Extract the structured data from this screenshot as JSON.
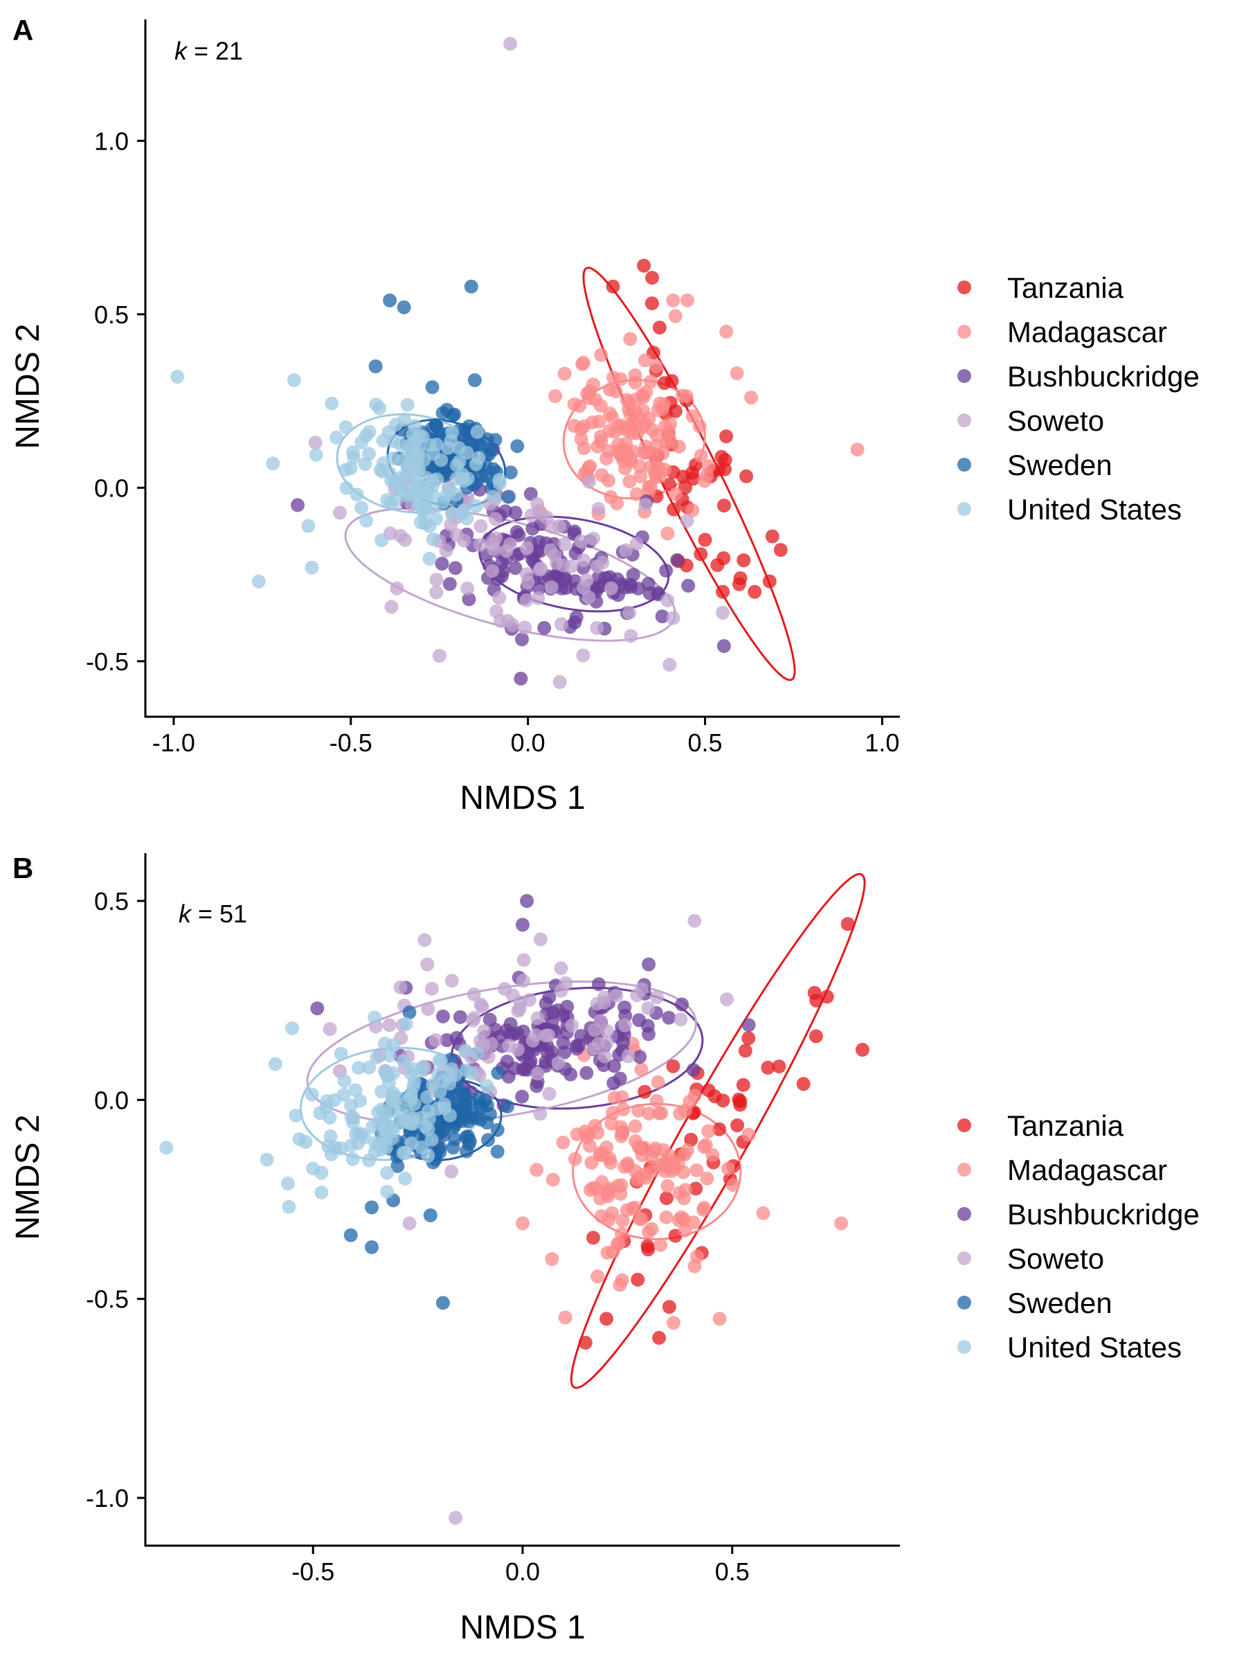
{
  "colors": {
    "Tanzania": "#E31A1C",
    "Madagascar": "#FB8A8A",
    "Bushbuckridge": "#6A3D9A",
    "Soweto": "#C2A5CF",
    "Sweden": "#1F65A8",
    "United States": "#9ECAE1"
  },
  "chart_data": [
    {
      "type": "scatter",
      "panel": "A",
      "annotation": {
        "variable": "k",
        "text": " = 21"
      },
      "xlabel": "NMDS 1",
      "ylabel": "NMDS 2",
      "xlim": [
        -1.08,
        1.05
      ],
      "ylim": [
        -0.66,
        1.35
      ],
      "xticks": [
        -1.0,
        -0.5,
        0.0,
        0.5,
        1.0
      ],
      "xtick_labels": [
        "-1.0",
        "-0.5",
        "0.0",
        "0.5",
        "1.0"
      ],
      "yticks": [
        -0.5,
        0.0,
        0.5,
        1.0
      ],
      "ytick_labels": [
        "-0.5",
        "0.0",
        "0.5",
        "1.0"
      ],
      "legend_position": "right",
      "series": [
        {
          "name": "Tanzania",
          "center": [
            0.48,
            0.05
          ],
          "sd": [
            0.1,
            0.22
          ],
          "corr": -0.7,
          "n": 45,
          "seed": 11,
          "ellipse": {
            "cx": 0.455,
            "cy": 0.04,
            "a": 0.66,
            "b": 0.08,
            "angle": -64
          },
          "extra": [
            [
              0.24,
              0.58
            ],
            [
              0.69,
              -0.14
            ],
            [
              0.55,
              -0.3
            ],
            [
              0.64,
              -0.3
            ],
            [
              0.5,
              -0.15
            ]
          ]
        },
        {
          "name": "Madagascar",
          "center": [
            0.29,
            0.15
          ],
          "sd": [
            0.1,
            0.11
          ],
          "corr": -0.1,
          "n": 130,
          "seed": 23,
          "ellipse": {
            "cx": 0.3,
            "cy": 0.14,
            "a": 0.2,
            "b": 0.17,
            "angle": 8
          },
          "extra": [
            [
              0.93,
              0.11
            ],
            [
              0.45,
              0.54
            ],
            [
              0.41,
              0.54
            ],
            [
              0.56,
              0.45
            ],
            [
              0.59,
              0.33
            ],
            [
              0.63,
              0.26
            ]
          ]
        },
        {
          "name": "Bushbuckridge",
          "center": [
            0.09,
            -0.22
          ],
          "sd": [
            0.16,
            0.1
          ],
          "corr": -0.45,
          "n": 130,
          "seed": 37,
          "ellipse": {
            "cx": 0.13,
            "cy": -0.22,
            "a": 0.27,
            "b": 0.13,
            "angle": -10
          },
          "extra": [
            [
              -0.02,
              -0.55
            ],
            [
              -0.65,
              -0.05
            ]
          ]
        },
        {
          "name": "Soweto",
          "center": [
            -0.05,
            -0.2
          ],
          "sd": [
            0.22,
            0.12
          ],
          "corr": -0.35,
          "n": 85,
          "seed": 53,
          "ellipse": {
            "cx": -0.05,
            "cy": -0.25,
            "a": 0.48,
            "b": 0.15,
            "angle": -15
          },
          "extra": [
            [
              -0.05,
              1.28
            ],
            [
              0.09,
              -0.56
            ],
            [
              0.4,
              -0.51
            ],
            [
              -0.37,
              -0.29
            ],
            [
              -0.6,
              0.13
            ],
            [
              0.55,
              -0.36
            ]
          ]
        },
        {
          "name": "Sweden",
          "center": [
            -0.21,
            0.1
          ],
          "sd": [
            0.07,
            0.05
          ],
          "corr": -0.2,
          "n": 140,
          "seed": 71,
          "ellipse": {
            "cx": -0.23,
            "cy": 0.07,
            "a": 0.17,
            "b": 0.12,
            "angle": -18
          },
          "extra": [
            [
              -0.39,
              0.54
            ],
            [
              -0.35,
              0.52
            ],
            [
              -0.16,
              0.58
            ],
            [
              -0.43,
              0.35
            ],
            [
              -0.15,
              0.31
            ],
            [
              -0.27,
              0.29
            ],
            [
              -0.03,
              0.12
            ]
          ]
        },
        {
          "name": "United States",
          "center": [
            -0.33,
            0.05
          ],
          "sd": [
            0.1,
            0.08
          ],
          "corr": -0.15,
          "n": 130,
          "seed": 89,
          "ellipse": {
            "cx": -0.33,
            "cy": 0.07,
            "a": 0.21,
            "b": 0.14,
            "angle": -8
          },
          "extra": [
            [
              -0.99,
              0.32
            ],
            [
              -0.76,
              -0.27
            ],
            [
              -0.61,
              -0.23
            ],
            [
              -0.72,
              0.07
            ],
            [
              -0.62,
              -0.11
            ],
            [
              -0.66,
              0.31
            ]
          ]
        }
      ]
    },
    {
      "type": "scatter",
      "panel": "B",
      "annotation": {
        "variable": "k",
        "text": " = 51"
      },
      "xlabel": "NMDS 1",
      "ylabel": "NMDS 2",
      "xlim": [
        -0.9,
        0.9
      ],
      "ylim": [
        -1.12,
        0.62
      ],
      "xticks": [
        -0.5,
        0.0,
        0.5
      ],
      "xtick_labels": [
        "-0.5",
        "0.0",
        "0.5"
      ],
      "yticks": [
        -1.0,
        -0.5,
        0.0,
        0.5
      ],
      "ytick_labels": [
        "-1.0",
        "-0.5",
        "0.0",
        "0.5"
      ],
      "legend_position": "right",
      "series": [
        {
          "name": "Tanzania",
          "center": [
            0.4,
            -0.15
          ],
          "sd": [
            0.16,
            0.22
          ],
          "corr": 0.8,
          "n": 45,
          "seed": 13,
          "ellipse": {
            "cx": 0.466,
            "cy": -0.078,
            "a": 0.73,
            "b": 0.08,
            "angle": 62
          },
          "extra": [
            [
              0.7,
              0.16
            ],
            [
              0.67,
              0.04
            ],
            [
              0.15,
              -0.61
            ],
            [
              0.2,
              -0.55
            ],
            [
              0.35,
              -0.52
            ]
          ]
        },
        {
          "name": "Madagascar",
          "center": [
            0.28,
            -0.17
          ],
          "sd": [
            0.1,
            0.12
          ],
          "corr": -0.1,
          "n": 130,
          "seed": 29,
          "ellipse": {
            "cx": 0.32,
            "cy": -0.18,
            "a": 0.2,
            "b": 0.17,
            "angle": 0
          },
          "extra": [
            [
              0.76,
              -0.31
            ],
            [
              0.47,
              -0.55
            ],
            [
              0.36,
              -0.56
            ],
            [
              0.07,
              -0.4
            ],
            [
              0.0,
              -0.31
            ]
          ]
        },
        {
          "name": "Bushbuckridge",
          "center": [
            0.08,
            0.15
          ],
          "sd": [
            0.14,
            0.07
          ],
          "corr": 0.3,
          "n": 140,
          "seed": 41,
          "ellipse": {
            "cx": 0.13,
            "cy": 0.13,
            "a": 0.3,
            "b": 0.15,
            "angle": 5
          },
          "extra": [
            [
              0.01,
              0.5
            ],
            [
              0.0,
              0.44
            ],
            [
              -0.49,
              0.23
            ],
            [
              0.38,
              0.24
            ]
          ]
        },
        {
          "name": "Soweto",
          "center": [
            -0.02,
            0.18
          ],
          "sd": [
            0.2,
            0.09
          ],
          "corr": 0.3,
          "n": 85,
          "seed": 59,
          "ellipse": {
            "cx": -0.05,
            "cy": 0.12,
            "a": 0.47,
            "b": 0.16,
            "angle": 10
          },
          "extra": [
            [
              -0.16,
              -1.05
            ],
            [
              0.41,
              0.45
            ],
            [
              -0.27,
              -0.31
            ],
            [
              -0.17,
              -0.18
            ]
          ]
        },
        {
          "name": "Sweden",
          "center": [
            -0.2,
            -0.05
          ],
          "sd": [
            0.07,
            0.05
          ],
          "corr": 0.25,
          "n": 140,
          "seed": 73,
          "ellipse": {
            "cx": -0.19,
            "cy": -0.05,
            "a": 0.14,
            "b": 0.1,
            "angle": 10
          },
          "extra": [
            [
              -0.19,
              -0.51
            ],
            [
              -0.36,
              -0.37
            ],
            [
              -0.41,
              -0.34
            ],
            [
              -0.36,
              -0.27
            ],
            [
              -0.22,
              -0.29
            ],
            [
              -0.06,
              -0.13
            ],
            [
              -0.27,
              0.22
            ]
          ]
        },
        {
          "name": "United States",
          "center": [
            -0.33,
            -0.03
          ],
          "sd": [
            0.1,
            0.09
          ],
          "corr": 0.2,
          "n": 130,
          "seed": 97,
          "ellipse": {
            "cx": -0.31,
            "cy": -0.01,
            "a": 0.22,
            "b": 0.14,
            "angle": 5
          },
          "extra": [
            [
              -0.85,
              -0.12
            ],
            [
              -0.61,
              -0.15
            ],
            [
              -0.56,
              -0.21
            ],
            [
              -0.55,
              0.18
            ],
            [
              -0.59,
              0.09
            ]
          ]
        }
      ]
    }
  ]
}
